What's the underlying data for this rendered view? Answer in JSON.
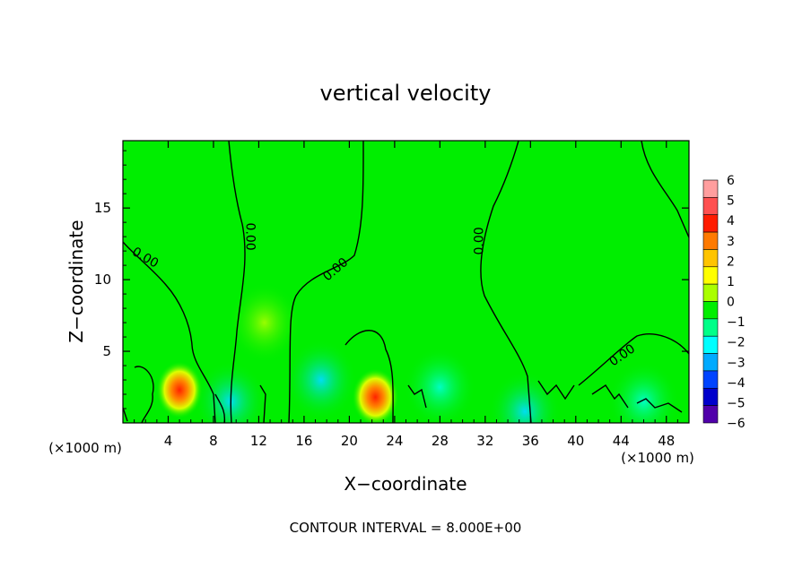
{
  "chart_data": {
    "type": "heatmap",
    "title": "vertical velocity",
    "xlabel": "X−coordinate",
    "ylabel": "Z−coordinate",
    "x_unit_left": "(×1000 m)",
    "x_unit_right": "(×1000 m)",
    "footer": "CONTOUR INTERVAL = 8.000E+00",
    "xlim": [
      0,
      50
    ],
    "ylim": [
      0,
      19.7
    ],
    "x_ticks": [
      4,
      8,
      12,
      16,
      20,
      24,
      28,
      32,
      36,
      40,
      44,
      48
    ],
    "x_tick_labels": [
      "4",
      "8",
      "12",
      "16",
      "20",
      "24",
      "28",
      "32",
      "36",
      "40",
      "44",
      "48"
    ],
    "y_ticks": [
      5,
      10,
      15
    ],
    "y_tick_labels": [
      "5",
      "10",
      "15"
    ],
    "colorbar": {
      "range": [
        -6,
        6
      ],
      "labels": [
        "6",
        "5",
        "4",
        "3",
        "2",
        "1",
        "0",
        "−1",
        "−2",
        "−3",
        "−4",
        "−5",
        "−6"
      ],
      "colors": [
        "#ff9e9e",
        "#ff5050",
        "#ff1c00",
        "#ff7a00",
        "#ffc400",
        "#ffff00",
        "#aaff00",
        "#00ee00",
        "#00ff88",
        "#00ffff",
        "#00aaff",
        "#0044ff",
        "#0000cc",
        "#5000aa"
      ]
    },
    "contour_labels": [
      {
        "text": "0.00",
        "x": 1.8,
        "z": 11.3,
        "rot": 30
      },
      {
        "text": "0.00",
        "x": 10.9,
        "z": 13.0,
        "rot": 90
      },
      {
        "text": "0.00",
        "x": 19.0,
        "z": 10.5,
        "rot": -40
      },
      {
        "text": "0.00",
        "x": 31.8,
        "z": 12.7,
        "rot": -90
      },
      {
        "text": "0.00",
        "x": 44.3,
        "z": 4.5,
        "rot": -35
      }
    ],
    "features": [
      {
        "x": 5.0,
        "z": 2.3,
        "w": 0.24,
        "peak": 4.5
      },
      {
        "x": 22.3,
        "z": 1.8,
        "w": 0.28,
        "peak": 4.5
      },
      {
        "x": 12.5,
        "z": 7.0,
        "w": 0.15,
        "peak": 0.8
      },
      {
        "x": 17.5,
        "z": 3.0,
        "w": 0.2,
        "peak": -1.5
      },
      {
        "x": 9.5,
        "z": 1.5,
        "w": 0.2,
        "peak": -1.5
      },
      {
        "x": 28.0,
        "z": 2.5,
        "w": 0.2,
        "peak": -1.2
      },
      {
        "x": 35.5,
        "z": 0.8,
        "w": 0.2,
        "peak": -1.5
      },
      {
        "x": 46.0,
        "z": 1.5,
        "w": 0.2,
        "peak": -1.0
      }
    ]
  }
}
